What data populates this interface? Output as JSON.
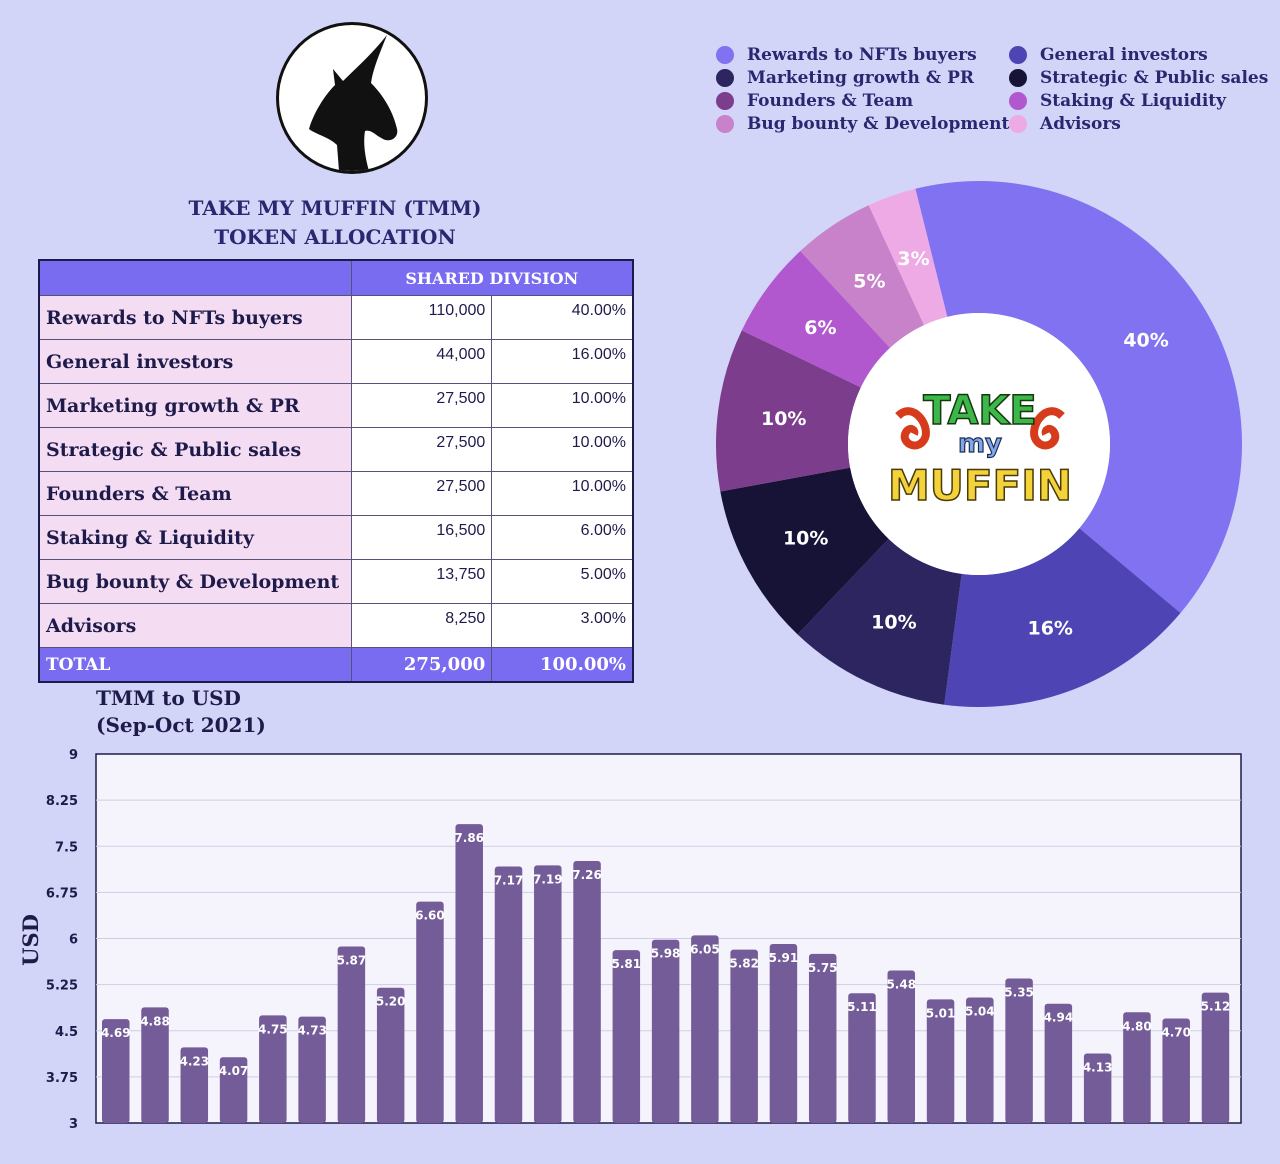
{
  "allocation": {
    "title_line1": "TAKE MY MUFFIN (TMM)",
    "title_line2": "TOKEN ALLOCATION",
    "header": "SHARED DIVISION",
    "rows": [
      {
        "name": "Rewards to NFTs buyers",
        "amount": "110,000",
        "percent": "40.00%"
      },
      {
        "name": "General investors",
        "amount": "44,000",
        "percent": "16.00%"
      },
      {
        "name": "Marketing growth & PR",
        "amount": "27,500",
        "percent": "10.00%"
      },
      {
        "name": "Strategic & Public sales",
        "amount": "27,500",
        "percent": "10.00%"
      },
      {
        "name": "Founders & Team",
        "amount": "27,500",
        "percent": "10.00%"
      },
      {
        "name": "Staking & Liquidity",
        "amount": "16,500",
        "percent": "6.00%"
      },
      {
        "name": "Bug bounty & Development",
        "amount": "13,750",
        "percent": "5.00%"
      },
      {
        "name": "Advisors",
        "amount": "8,250",
        "percent": "3.00%"
      }
    ],
    "total": {
      "name": "TOTAL",
      "amount": "275,000",
      "percent": "100.00%"
    }
  },
  "logo": {
    "unicorn_icon": "unicorn-head-icon",
    "word1": "TAKE",
    "word2": "my",
    "word3": "MUFFIN"
  },
  "chart_data": [
    {
      "type": "pie",
      "style": "donut",
      "categories": [
        "Rewards to NFTs buyers",
        "General investors",
        "Marketing growth & PR",
        "Strategic & Public sales",
        "Founders & Team",
        "Staking & Liquidity",
        "Bug bounty & Development",
        "Advisors"
      ],
      "values": [
        40,
        16,
        10,
        10,
        10,
        6,
        5,
        3
      ],
      "labels": [
        "40%",
        "16%",
        "10%",
        "10%",
        "10%",
        "6%",
        "5%",
        "3%"
      ],
      "colors": [
        "#8072f0",
        "#4f44b4",
        "#2c2560",
        "#171337",
        "#7c3d8c",
        "#b158cf",
        "#c782c9",
        "#eeaae4"
      ],
      "legend_position": "top"
    },
    {
      "type": "bar",
      "title": "TMM to USD",
      "subtitle": "(Sep-Oct 2021)",
      "ylabel": "USD",
      "xlabel": "",
      "ylim": [
        3,
        9
      ],
      "yticks": [
        "3",
        "3.75",
        "4.5",
        "5.25",
        "6",
        "6.75",
        "7.5",
        "8.25",
        "9"
      ],
      "tick_values": [
        3,
        3.75,
        4.5,
        5.25,
        6,
        6.75,
        7.5,
        8.25,
        9
      ],
      "values": [
        4.69,
        4.88,
        4.23,
        4.07,
        4.75,
        4.73,
        5.87,
        5.2,
        6.6,
        7.86,
        7.17,
        7.19,
        7.26,
        5.81,
        5.98,
        6.05,
        5.82,
        5.91,
        5.75,
        5.11,
        5.48,
        5.01,
        5.04,
        5.35,
        4.94,
        4.13,
        4.8,
        4.7,
        5.12
      ],
      "value_labels": [
        "4.69",
        "4.88",
        "4.23",
        "4.07",
        "4.75",
        "4.73",
        "5.87",
        "5.20",
        "6.60",
        "7.86",
        "7.17",
        "7.19",
        "7.26",
        "5.81",
        "5.98",
        "6.05",
        "5.82",
        "5.91",
        "5.75",
        "5.11",
        "5.48",
        "5.01",
        "5.04",
        "5.35",
        "4.94",
        "4.13",
        "4.80",
        "4.70",
        "5.12"
      ],
      "bar_color": "#735c97",
      "grid": true
    }
  ]
}
